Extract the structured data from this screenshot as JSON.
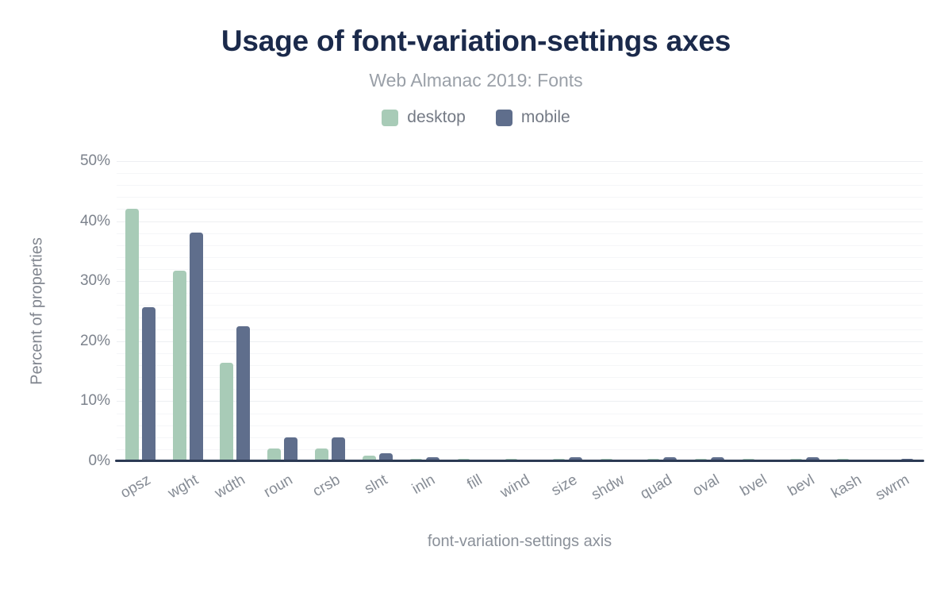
{
  "colors": {
    "title_navy": "#1b2a4b",
    "axis_line": "#2c3a54",
    "desktop_green": "#a8cbb7",
    "mobile_slate": "#5f6e8c"
  },
  "chart_data": {
    "type": "bar",
    "title": "Usage of font-variation-settings axes",
    "subtitle": "Web Almanac 2019: Fonts",
    "xlabel": "font-variation-settings axis",
    "ylabel": "Percent of properties",
    "ylim": [
      0,
      50
    ],
    "ytick_step": 10,
    "grid_step": 2,
    "grid": "horizontal",
    "legend_position": "top",
    "yticks": [
      {
        "label": "50%",
        "value": 50
      },
      {
        "label": "40%",
        "value": 40
      },
      {
        "label": "30%",
        "value": 30
      },
      {
        "label": "20%",
        "value": 20
      },
      {
        "label": "10%",
        "value": 10
      },
      {
        "label": "0%",
        "value": 0
      }
    ],
    "categories": [
      "opsz",
      "wght",
      "wdth",
      "roun",
      "crsb",
      "slnt",
      "inln",
      "fill",
      "wind",
      "size",
      "shdw",
      "quad",
      "oval",
      "bvel",
      "bevl",
      "kash",
      "swrm"
    ],
    "series": [
      {
        "name": "desktop",
        "color": "#a8cbb7",
        "values": [
          42.1,
          31.8,
          16.4,
          2.1,
          2.1,
          0.9,
          0.4,
          0.4,
          0.4,
          0.4,
          0.4,
          0.4,
          0.4,
          0.4,
          0.4,
          0.4,
          0.1
        ]
      },
      {
        "name": "mobile",
        "color": "#5f6e8c",
        "values": [
          25.7,
          38.1,
          22.5,
          4.0,
          4.0,
          1.3,
          0.6,
          0,
          0,
          0.6,
          0,
          0.6,
          0.6,
          0,
          0.6,
          0,
          0.4
        ]
      }
    ]
  }
}
